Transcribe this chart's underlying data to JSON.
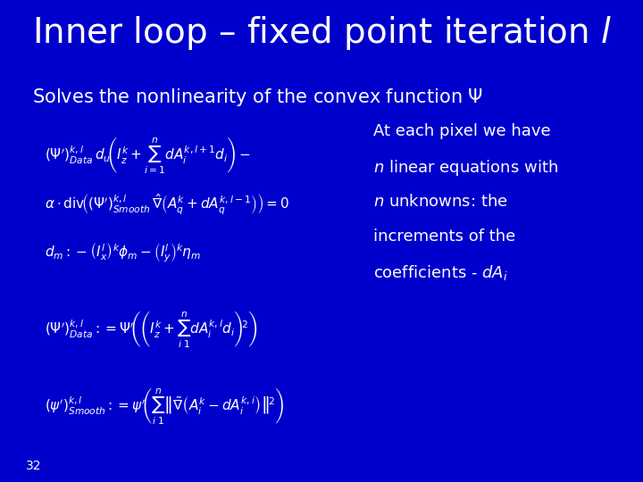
{
  "background_color": "#0000CC",
  "title": "Inner loop – fixed point iteration $l$",
  "title_color": "#FFFFFF",
  "title_fontsize": 28,
  "subtitle": "Solves the nonlinearity of the convex function $\\Psi$",
  "subtitle_fontsize": 15,
  "subtitle_color": "#FFFFFF",
  "eq1": "$(\\Psi')^{k,l}_{Data}\\, d_u\\!\\left(I^k_z + \\sum_{i=1}^{n} dA^{k,l+1}_i d_i\\right) -$",
  "eq2": "$\\alpha \\cdot \\mathrm{div}\\!\\left((\\Psi')^{k,l}_{Smooth}\\, \\hat{\\nabla}\\left(A^k_q + dA^{k,l-1}_q\\right)\\right) = 0$",
  "eq3": "$d_m :- \\left(I^l_x\\right)^k \\phi_m - \\left(I^l_y\\right)^k \\eta_m$",
  "eq4": "$(\\Psi')^{k,l}_{Data} := \\Psi'\\!\\left(\\left(I^k_z + \\sum_{i\\;1}^{n} dA^{k,l}_i d_i\\right)^{\\!2}\\right)$",
  "eq5": "$(\\psi')^{k,l}_{Smooth} := \\psi'\\!\\left(\\sum_{i\\;1}^{n}\\left\\|\\tilde{\\nabla}\\left(A^k_i - dA^{k,i}_i\\right)\\right\\|^{\\!2}\\right)$",
  "side_text_lines": [
    "At each pixel we have",
    "$n$ linear equations with",
    "$n$ unknowns: the",
    "increments of the",
    "coefficients - $dA_i$"
  ],
  "side_text_color": "#FFFFFF",
  "side_text_fontsize": 13,
  "eq_color": "#FFFFFF",
  "eq_fontsize": 11,
  "page_number": "32",
  "page_number_color": "#FFFFFF",
  "page_number_fontsize": 10
}
